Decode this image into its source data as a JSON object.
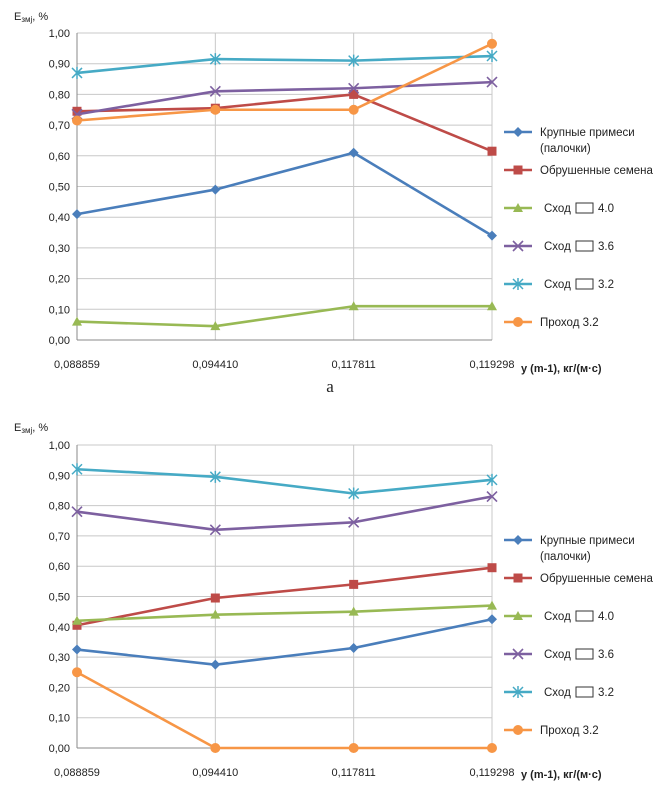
{
  "chart_data": [
    {
      "type": "line",
      "caption": "а",
      "ylabel": "Eзмj, %",
      "xlabel": "y (m-1), кг/(м·с)",
      "categories": [
        "0,088859",
        "0,094410",
        "0,117811",
        "0,119298"
      ],
      "ylim": [
        0,
        1
      ],
      "yticks": [
        "0,00",
        "0,10",
        "0,20",
        "0,30",
        "0,40",
        "0,50",
        "0,60",
        "0,70",
        "0,80",
        "0,90",
        "1,00"
      ],
      "grid": true,
      "legend": "right",
      "series": [
        {
          "name": "Крупные примеси",
          "name2": "(палочки)",
          "marker": "diamond",
          "color": "#4a7ebb",
          "values": [
            0.41,
            0.49,
            0.61,
            0.34
          ]
        },
        {
          "name": "Обрушенные семена",
          "marker": "square",
          "color": "#be4b48",
          "values": [
            0.745,
            0.755,
            0.8,
            0.615
          ]
        },
        {
          "name": "Сход",
          "suffix": "4.0",
          "marker": "triangle",
          "color": "#98b954",
          "values": [
            0.06,
            0.045,
            0.11,
            0.11
          ]
        },
        {
          "name": "Сход",
          "suffix": "3.6",
          "marker": "x",
          "color": "#7d60a0",
          "values": [
            0.735,
            0.81,
            0.82,
            0.84
          ]
        },
        {
          "name": "Сход",
          "suffix": "3.2",
          "marker": "star",
          "color": "#46aac5",
          "values": [
            0.87,
            0.915,
            0.91,
            0.925
          ]
        },
        {
          "name": "Проход 3.2",
          "marker": "circle",
          "color": "#f79646",
          "values": [
            0.715,
            0.75,
            0.75,
            0.965
          ]
        }
      ]
    },
    {
      "type": "line",
      "caption": "",
      "ylabel": "Eзмj, %",
      "xlabel": "y (m-1), кг/(м·с)",
      "categories": [
        "0,088859",
        "0,094410",
        "0,117811",
        "0,119298"
      ],
      "ylim": [
        0,
        1
      ],
      "yticks": [
        "0,00",
        "0,10",
        "0,20",
        "0,30",
        "0,40",
        "0,50",
        "0,60",
        "0,70",
        "0,80",
        "0,90",
        "1,00"
      ],
      "grid": true,
      "legend": "right",
      "series": [
        {
          "name": "Крупные примеси",
          "name2": "(палочки)",
          "marker": "diamond",
          "color": "#4a7ebb",
          "values": [
            0.325,
            0.275,
            0.33,
            0.425
          ]
        },
        {
          "name": "Обрушенные семена",
          "marker": "square",
          "color": "#be4b48",
          "values": [
            0.405,
            0.495,
            0.54,
            0.595
          ]
        },
        {
          "name": "Сход",
          "suffix": "4.0",
          "marker": "triangle",
          "color": "#98b954",
          "values": [
            0.42,
            0.44,
            0.45,
            0.47
          ]
        },
        {
          "name": "Сход",
          "suffix": "3.6",
          "marker": "x",
          "color": "#7d60a0",
          "values": [
            0.78,
            0.72,
            0.745,
            0.83
          ]
        },
        {
          "name": "Сход",
          "suffix": "3.2",
          "marker": "star",
          "color": "#46aac5",
          "values": [
            0.92,
            0.895,
            0.84,
            0.885
          ]
        },
        {
          "name": "Проход 3.2",
          "marker": "circle",
          "color": "#f79646",
          "values": [
            0.25,
            0.0,
            0.0,
            0.0
          ]
        }
      ]
    }
  ]
}
